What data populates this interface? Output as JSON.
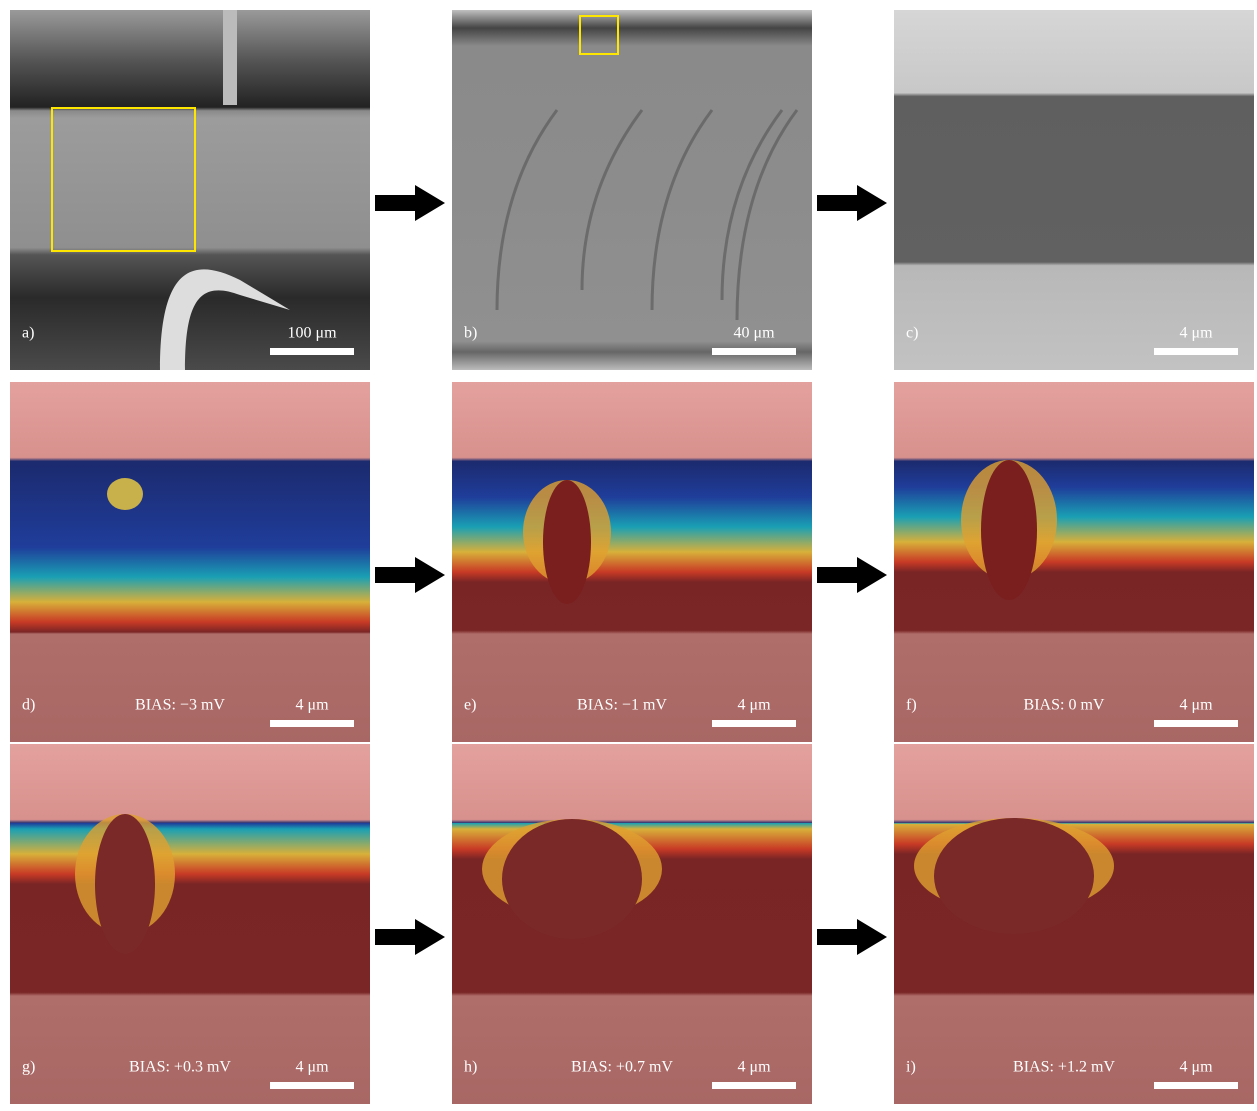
{
  "panels": [
    {
      "label": "a)",
      "scale": "100 μm"
    },
    {
      "label": "b)",
      "scale": "40 μm"
    },
    {
      "label": "c)",
      "scale": "4 μm"
    },
    {
      "label": "d)",
      "bias": "BIAS: −3 mV",
      "scale": "4 μm"
    },
    {
      "label": "e)",
      "bias": "BIAS: −1 mV",
      "scale": "4 μm"
    },
    {
      "label": "f)",
      "bias": "BIAS: 0 mV",
      "scale": "4 μm"
    },
    {
      "label": "g)",
      "bias": "BIAS: +0.3 mV",
      "scale": "4 μm"
    },
    {
      "label": "h)",
      "bias": "BIAS: +0.7 mV",
      "scale": "4 μm"
    },
    {
      "label": "i)",
      "bias": "BIAS: +1.2 mV",
      "scale": "4 μm"
    }
  ]
}
